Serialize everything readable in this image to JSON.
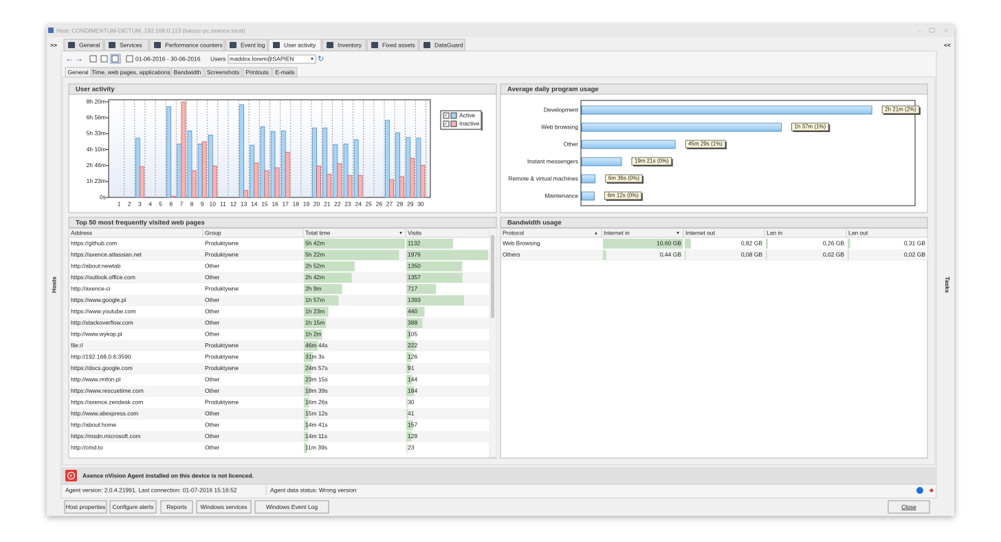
{
  "window": {
    "title": "Host: CONDIMENTUM-DICTUM, 192.168.0.113 (lukasz-pc.axence.local)",
    "left_toggle": ">>",
    "right_toggle": "<<",
    "left_panel": "Hosts",
    "right_panel": "Tasks"
  },
  "tabs": [
    {
      "label": "General"
    },
    {
      "label": "Services"
    },
    {
      "label": "Performance counters"
    },
    {
      "label": "Event log"
    },
    {
      "label": "User activity",
      "selected": true
    },
    {
      "label": "Inventory"
    },
    {
      "label": "Fixed assets"
    },
    {
      "label": "DataGuard"
    }
  ],
  "toolbar": {
    "date_range": "01-06-2016 - 30-06-2016",
    "users_label": "Users",
    "user": "maddox.lorem@SAPIEN"
  },
  "subtabs": [
    {
      "label": "General",
      "selected": true
    },
    {
      "label": "Time, web pages, applications"
    },
    {
      "label": "Bandwidth"
    },
    {
      "label": "Screenshots"
    },
    {
      "label": "Printouts"
    },
    {
      "label": "E-mails"
    }
  ],
  "chart_data": [
    {
      "type": "bar",
      "title": "User activity",
      "categories": [
        "1",
        "2",
        "3",
        "4",
        "5",
        "6",
        "7",
        "8",
        "9",
        "10",
        "11",
        "12",
        "13",
        "14",
        "15",
        "16",
        "17",
        "18",
        "19",
        "20",
        "21",
        "22",
        "23",
        "24",
        "25",
        "26",
        "27",
        "28",
        "29",
        "30"
      ],
      "series": [
        {
          "name": "Active",
          "color": "#a9d4f5",
          "values": [
            0,
            0,
            18600,
            0,
            0,
            28500,
            16800,
            20900,
            16800,
            19600,
            0,
            0,
            29100,
            16400,
            22200,
            20700,
            20900,
            0,
            0,
            21800,
            21800,
            16600,
            16800,
            18100,
            0,
            0,
            24200,
            20300,
            18800,
            18600
          ]
        },
        {
          "name": "Inactive",
          "color": "#f5b5b5",
          "values": [
            0,
            0,
            9700,
            0,
            0,
            400,
            30000,
            8400,
            17500,
            9900,
            0,
            0,
            2200,
            10800,
            8400,
            9300,
            14200,
            0,
            0,
            9900,
            7300,
            10600,
            6900,
            6900,
            0,
            0,
            5600,
            6500,
            12300,
            10100
          ]
        }
      ],
      "ylim": [
        0,
        30000
      ],
      "yticks": [
        {
          "value": 0,
          "label": "0s"
        },
        {
          "value": 5000,
          "label": "1h 23m"
        },
        {
          "value": 10000,
          "label": "2h 46m"
        },
        {
          "value": 15000,
          "label": "4h 10m"
        },
        {
          "value": 20000,
          "label": "5h 33m"
        },
        {
          "value": 25000,
          "label": "6h 56m"
        },
        {
          "value": 30000,
          "label": "8h 20m"
        }
      ],
      "legend": "upper right"
    },
    {
      "type": "bar",
      "orientation": "horizontal",
      "title": "Average daily program usage",
      "categories": [
        "Development",
        "Web browsing",
        "Other",
        "Instant messengers",
        "Remote & virtual machines",
        "Maintenance"
      ],
      "values": [
        8460,
        5820,
        2729,
        1161,
        396,
        372
      ],
      "value_labels": [
        "2h 21m (2%)",
        "1h 37m (1%)",
        "45m 29s (1%)",
        "19m 21s (0%)",
        "6m 36s (0%)",
        "6m 12s (0%)"
      ],
      "color": "#a9d4f5"
    }
  ],
  "web_pages": {
    "title": "Top 50 most frequently visited web pages",
    "columns": [
      "Address",
      "Group",
      "Total time",
      "Visits"
    ],
    "rows": [
      [
        "https://github.com",
        "Produktywne",
        "5h 42m",
        1132
      ],
      [
        "https://axence.atlassian.net",
        "Produktywne",
        "5h 22m",
        1976
      ],
      [
        "http://about:newtab",
        "Other",
        "2h 52m",
        1350
      ],
      [
        "https://outlook.office.com",
        "Other",
        "2h 42m",
        1357
      ],
      [
        "http://axence-ci",
        "Produktywne",
        "2h 9m",
        717
      ],
      [
        "https://www.google.pl",
        "Other",
        "1h 57m",
        1393
      ],
      [
        "https://www.youtube.com",
        "Other",
        "1h 23m",
        440
      ],
      [
        "http://stackoverflow.com",
        "Other",
        "1h 15m",
        388
      ],
      [
        "http://www.wykop.pl",
        "Other",
        "1h 2m",
        105
      ],
      [
        "file://",
        "Produktywne",
        "46m 44s",
        222
      ],
      [
        "http://192.168.0.6:3590",
        "Produktywne",
        "31m 3s",
        126
      ],
      [
        "https://docs.google.com",
        "Produktywne",
        "24m 57s",
        91
      ],
      [
        "http://www.rmfon.pl",
        "Other",
        "23m 15s",
        144
      ],
      [
        "https://www.rescuetime.com",
        "Other",
        "18m 39s",
        184
      ],
      [
        "https://axence.zendesk.com",
        "Produktywne",
        "16m 26s",
        30
      ],
      [
        "http://www.aliexpress.com",
        "Other",
        "15m 12s",
        41
      ],
      [
        "http://about:home",
        "Other",
        "14m 41s",
        157
      ],
      [
        "https://msdn.microsoft.com",
        "Other",
        "14m 11s",
        129
      ],
      [
        "http://cmd.to",
        "Other",
        "11m 39s",
        23
      ]
    ]
  },
  "bandwidth": {
    "title": "Bandwidth usage",
    "columns": [
      "Protocol",
      "Internet in",
      "Internet out",
      "Lan in",
      "Lan out"
    ],
    "rows": [
      [
        "Web Browsing",
        "10,60 GB",
        "0,82 GB",
        "0,26 GB",
        "0,31 GB"
      ],
      [
        "Others",
        "0,44 GB",
        "0,08 GB",
        "0,02 GB",
        "0,02 GB"
      ]
    ]
  },
  "alert": "Axence nVision Agent installed on this device is not licenced.",
  "status": {
    "agent": "Agent version: 2.0.4.21991, Last connection: 01-07-2016 15:16:52",
    "data_status": "Agent data status: Wrong version"
  },
  "buttons": [
    "Host properties",
    "Configure alerts",
    "Reports",
    "Windows services",
    "Windows Event Log"
  ],
  "close_button": "Close"
}
